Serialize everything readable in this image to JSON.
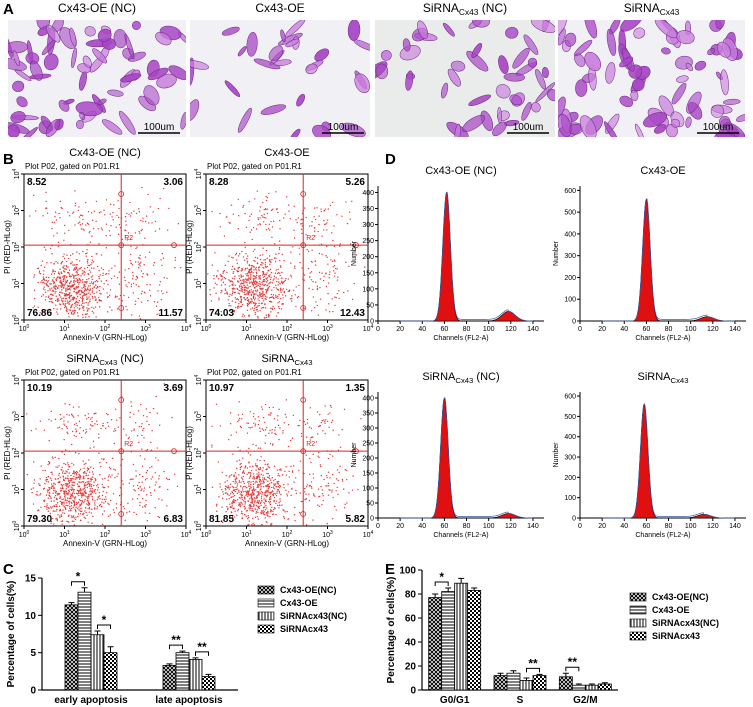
{
  "panel_a": {
    "label": "A",
    "images": [
      {
        "title": {
          "text": "Cx43-OE (NC)"
        }
      },
      {
        "title": {
          "text": "Cx43-OE"
        }
      },
      {
        "title": {
          "text": "SiRNA",
          "sub": "Cx43",
          "suffix": " (NC)"
        }
      },
      {
        "title": {
          "text": "SiRNA",
          "sub": "Cx43"
        }
      }
    ],
    "scale_bar": "100um"
  },
  "panel_b": {
    "label": "B",
    "subtitle": "Plot P02, gated on P01.R1",
    "gate": "R2",
    "x_label": "Annexin-V (GRN-HLog)",
    "y_label": "PI (RED-HLog)",
    "tick_base": "10",
    "tick_exponents": [
      0,
      1,
      2,
      3,
      4
    ],
    "plots": [
      {
        "title": {
          "text": "Cx43-OE (NC)"
        },
        "quadrants": {
          "ul": "8.52",
          "ur": "3.06",
          "ll": "76.86",
          "lr": "11.57"
        }
      },
      {
        "title": {
          "text": "Cx43-OE"
        },
        "quadrants": {
          "ul": "8.28",
          "ur": "5.26",
          "ll": "74.03",
          "lr": "12.43"
        }
      },
      {
        "title": {
          "text": "SiRNA",
          "sub": "Cx43",
          "suffix": " (NC)"
        },
        "quadrants": {
          "ul": "10.19",
          "ur": "3.69",
          "ll": "79.30",
          "lr": "6.83"
        }
      },
      {
        "title": {
          "text": "SiRNA",
          "sub": "Cx43"
        },
        "quadrants": {
          "ul": "10.97",
          "ur": "1.35",
          "ll": "81.85",
          "lr": "5.82"
        }
      }
    ]
  },
  "panel_d": {
    "label": "D",
    "x_label": "Channels (FL2-A)",
    "y_label": "Number",
    "xlim": [
      0,
      150
    ],
    "xticks": [
      0,
      20,
      40,
      60,
      80,
      100,
      120,
      140
    ],
    "plots": [
      {
        "title": {
          "text": "Cx43-OE (NC)"
        },
        "ylim": [
          0,
          420
        ],
        "yticks": [
          0,
          50,
          100,
          150,
          200,
          250,
          300,
          350,
          400
        ],
        "peaks": [
          [
            62,
            400
          ],
          [
            118,
            30
          ]
        ]
      },
      {
        "title": {
          "text": "Cx43-OE"
        },
        "ylim": [
          0,
          620
        ],
        "yticks": [
          0,
          100,
          200,
          300,
          400,
          500,
          600
        ],
        "peaks": [
          [
            60,
            560
          ],
          [
            115,
            20
          ]
        ]
      },
      {
        "title": {
          "text": "SiRNA",
          "sub": "Cx43",
          "suffix": " (NC)"
        },
        "ylim": [
          0,
          420
        ],
        "yticks": [
          0,
          50,
          100,
          150,
          200,
          250,
          300,
          350,
          400
        ],
        "peaks": [
          [
            60,
            400
          ],
          [
            118,
            15
          ]
        ]
      },
      {
        "title": {
          "text": "SiRNA",
          "sub": "Cx43"
        },
        "ylim": [
          0,
          620
        ],
        "yticks": [
          0,
          100,
          200,
          300,
          400,
          500,
          600
        ],
        "peaks": [
          [
            58,
            560
          ],
          [
            112,
            18
          ]
        ]
      }
    ]
  },
  "panel_c": {
    "label": "C",
    "type": "bar",
    "y_label": "Percentage of cells(%)",
    "categories": [
      "early apoptosis",
      "late apoptosis"
    ],
    "ylim": [
      0,
      15
    ],
    "yticks": [
      0,
      5,
      10,
      15
    ],
    "series": [
      {
        "name": "Cx43-OE(NC)",
        "pattern": "crosshatch",
        "values": [
          11.4,
          3.3
        ],
        "errors": [
          0.3,
          0.2
        ]
      },
      {
        "name": "Cx43-OE",
        "pattern": "hlines",
        "values": [
          13.1,
          5.0
        ],
        "errors": [
          0.6,
          0.2
        ]
      },
      {
        "name": "SiRNAcx43(NC)",
        "pattern": "vlines",
        "values": [
          7.4,
          4.1
        ],
        "errors": [
          0.5,
          0.2
        ]
      },
      {
        "name": "SiRNAcx43",
        "pattern": "checker",
        "values": [
          5.0,
          1.8
        ],
        "errors": [
          0.8,
          0.3
        ]
      }
    ],
    "significance": [
      {
        "category": 0,
        "series": [
          0,
          1
        ],
        "label": "*"
      },
      {
        "category": 0,
        "series": [
          2,
          3
        ],
        "label": "*"
      },
      {
        "category": 1,
        "series": [
          0,
          1
        ],
        "label": "**"
      },
      {
        "category": 1,
        "series": [
          2,
          3
        ],
        "label": "**"
      }
    ]
  },
  "panel_e": {
    "label": "E",
    "type": "bar",
    "y_label": "Percentage of cells(%)",
    "categories": [
      "G0/G1",
      "S",
      "G2/M"
    ],
    "ylim": [
      0,
      100
    ],
    "yticks": [
      0,
      20,
      40,
      60,
      80,
      100
    ],
    "series": [
      {
        "name": "Cx43-OE(NC)",
        "pattern": "crosshatch",
        "values": [
          77,
          12,
          11
        ],
        "errors": [
          3,
          2,
          3
        ]
      },
      {
        "name": "Cx43-OE",
        "pattern": "hlines",
        "values": [
          82,
          14,
          4
        ],
        "errors": [
          3,
          2,
          1
        ]
      },
      {
        "name": "SiRNAcx43(NC)",
        "pattern": "vlines",
        "values": [
          89,
          8,
          4
        ],
        "errors": [
          4,
          2,
          1
        ]
      },
      {
        "name": "SiRNAcx43",
        "pattern": "checker",
        "values": [
          83,
          12,
          5
        ],
        "errors": [
          2,
          1,
          1
        ]
      }
    ],
    "significance": [
      {
        "category": 0,
        "series": [
          0,
          1
        ],
        "label": "*"
      },
      {
        "category": 1,
        "series": [
          2,
          3
        ],
        "label": "**"
      },
      {
        "category": 2,
        "series": [
          0,
          1
        ],
        "label": "**"
      }
    ]
  }
}
